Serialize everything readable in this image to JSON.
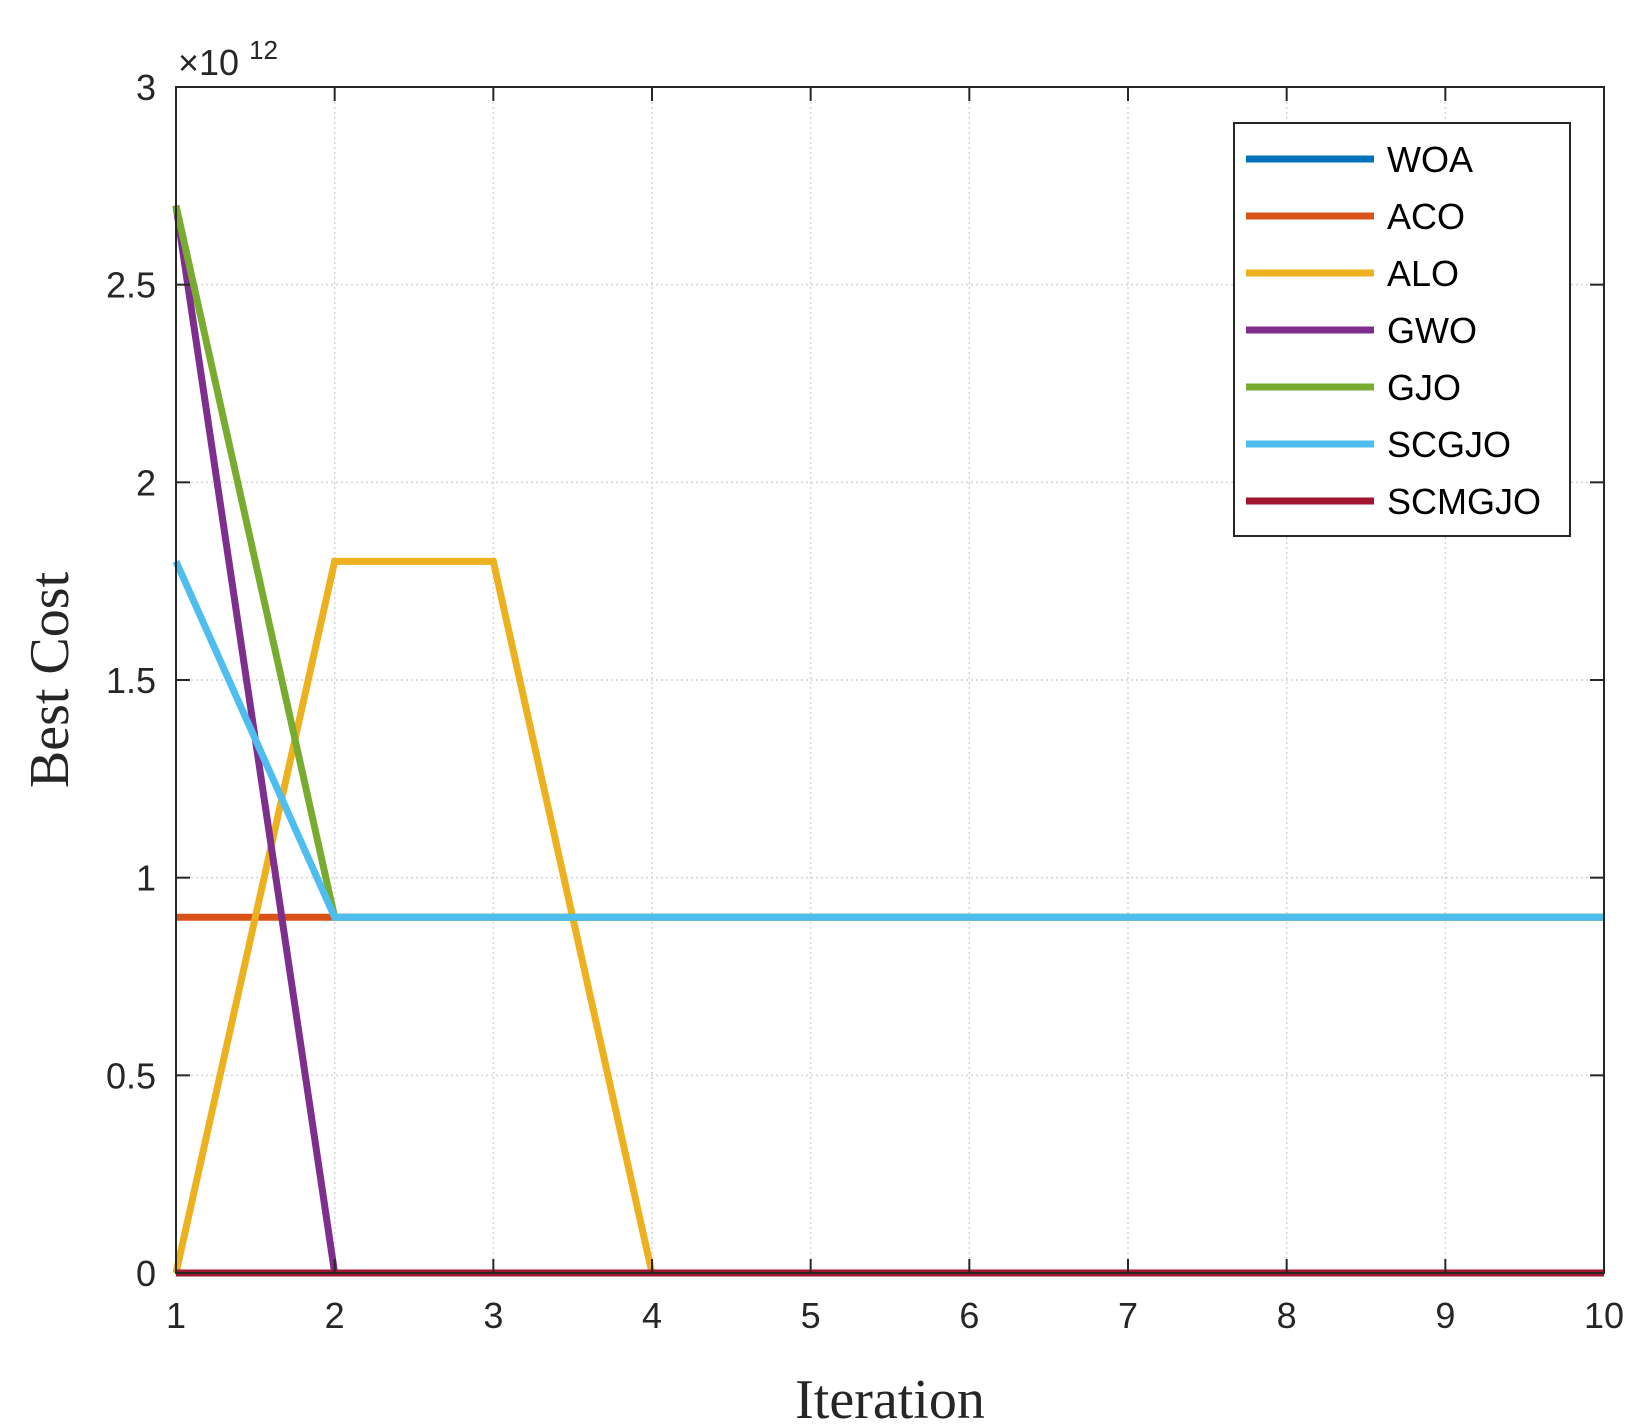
{
  "chart_data": {
    "type": "line",
    "title": "",
    "xlabel": "Iteration",
    "ylabel": "Best Cost",
    "xlim": [
      1,
      10
    ],
    "ylim": [
      0,
      3
    ],
    "xticks": [
      1,
      2,
      3,
      4,
      5,
      6,
      7,
      8,
      9,
      10
    ],
    "yticks": [
      0,
      0.5,
      1,
      1.5,
      2,
      2.5,
      3
    ],
    "ytick_labels": [
      "0",
      "0.5",
      "1",
      "1.5",
      "2",
      "2.5",
      "3"
    ],
    "y_multiplier": {
      "prefix": "×10",
      "exponent": "12"
    },
    "grid": true,
    "legend_position": "top-right",
    "x": [
      1,
      2,
      3,
      4,
      5,
      6,
      7,
      8,
      9,
      10
    ],
    "series": [
      {
        "name": "WOA",
        "color": "#0072BD",
        "values": [
          0,
          0,
          0,
          0,
          0,
          0,
          0,
          0,
          0,
          0
        ]
      },
      {
        "name": "ACO",
        "color": "#D95319",
        "values": [
          0.9,
          0.9,
          0.9,
          0.9,
          0.9,
          0.9,
          0.9,
          0.9,
          0.9,
          0.9
        ]
      },
      {
        "name": "ALO",
        "color": "#EDB120",
        "values": [
          0,
          1.8,
          1.8,
          0,
          0,
          0,
          0,
          0,
          0,
          0
        ]
      },
      {
        "name": "GWO",
        "color": "#7E2F8E",
        "values": [
          2.7,
          0,
          0,
          0,
          0,
          0,
          0,
          0,
          0,
          0
        ]
      },
      {
        "name": "GJO",
        "color": "#77AC30",
        "values": [
          2.7,
          0.9,
          0.9,
          0.9,
          0.9,
          0.9,
          0.9,
          0.9,
          0.9,
          0.9
        ]
      },
      {
        "name": "SCGJO",
        "color": "#4DBEEE",
        "values": [
          1.8,
          0.9,
          0.9,
          0.9,
          0.9,
          0.9,
          0.9,
          0.9,
          0.9,
          0.9
        ]
      },
      {
        "name": "SCMGJO",
        "color": "#A2142F",
        "values": [
          0,
          0,
          0,
          0,
          0,
          0,
          0,
          0,
          0,
          0
        ]
      }
    ]
  }
}
